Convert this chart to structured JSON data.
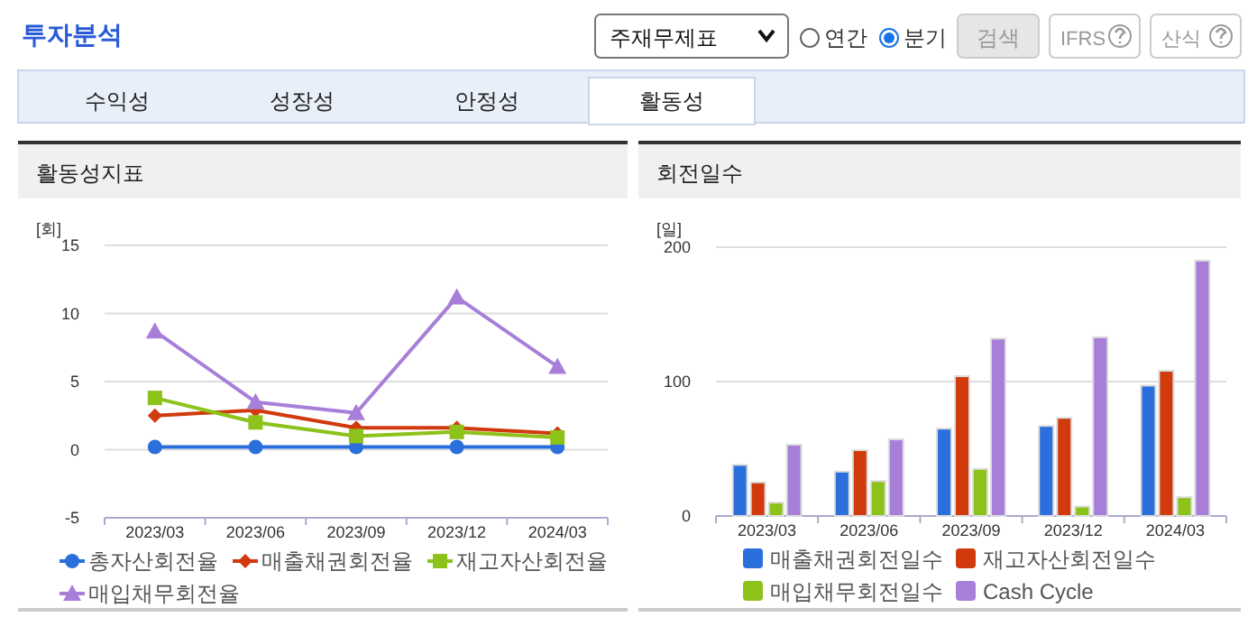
{
  "chart_data": [
    {
      "type": "other",
      "title": "투자분석",
      "annotations": [
        "주재무제표",
        "연간",
        "분기",
        "검색",
        "IFRS",
        "산식",
        "수익성",
        "성장성",
        "안정성",
        "활동성"
      ]
    },
    {
      "type": "line",
      "title": "활동성지표",
      "ylabel": "[회]",
      "categories": [
        "2023/03",
        "2023/06",
        "2023/09",
        "2023/12",
        "2024/03"
      ],
      "ylim": [
        -5,
        15
      ],
      "yticks": [
        -5,
        0,
        5,
        10,
        15
      ],
      "grid": "y",
      "legend": "bottom",
      "series": [
        {
          "name": "총자산회전율",
          "color": "#2a6fdb",
          "marker": "circle",
          "values": [
            0.2,
            0.2,
            0.2,
            0.2,
            0.2
          ]
        },
        {
          "name": "매출채권회전율",
          "color": "#d13a0c",
          "marker": "diamond",
          "values": [
            2.5,
            2.9,
            1.6,
            1.6,
            1.2
          ]
        },
        {
          "name": "재고자산회전율",
          "color": "#8cc21a",
          "marker": "square",
          "values": [
            3.8,
            2,
            1,
            1.3,
            0.9
          ]
        },
        {
          "name": "매입채무회전율",
          "color": "#a77fd9",
          "marker": "triangle",
          "values": [
            8.7,
            3.5,
            2.7,
            11.2,
            6.1
          ]
        }
      ]
    },
    {
      "type": "bar",
      "title": "회전일수",
      "ylabel": "[일]",
      "categories": [
        "2023/03",
        "2023/06",
        "2023/09",
        "2023/12",
        "2024/03"
      ],
      "ylim": [
        0,
        200
      ],
      "yticks": [
        0,
        100,
        200
      ],
      "grid": "y",
      "legend": "bottom",
      "series": [
        {
          "name": "매출채권회전일수",
          "color": "#2a6fdb",
          "values": [
            38,
            33,
            65,
            67,
            97
          ]
        },
        {
          "name": "재고자산회전일수",
          "color": "#d13a0c",
          "values": [
            25,
            49,
            104,
            73,
            108
          ]
        },
        {
          "name": "매입채무회전일수",
          "color": "#8cc21a",
          "values": [
            10,
            26,
            35,
            7,
            14
          ]
        },
        {
          "name": "Cash Cycle",
          "color": "#a77fd9",
          "values": [
            53,
            57,
            132,
            133,
            190
          ]
        }
      ]
    }
  ]
}
